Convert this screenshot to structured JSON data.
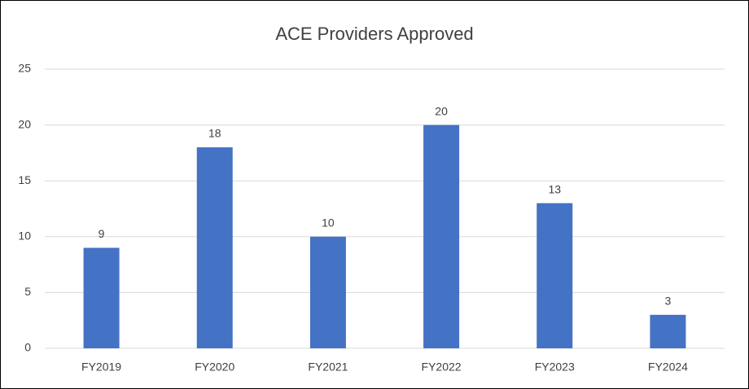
{
  "chart_data": {
    "type": "bar",
    "title": "ACE Providers Approved",
    "categories": [
      "FY2019",
      "FY2020",
      "FY2021",
      "FY2022",
      "FY2023",
      "FY2024"
    ],
    "values": [
      9,
      18,
      10,
      20,
      13,
      3
    ],
    "color": "#4472c4",
    "ylim": [
      0,
      25
    ],
    "yticks": [
      0,
      5,
      10,
      15,
      20,
      25
    ],
    "grid": true
  }
}
